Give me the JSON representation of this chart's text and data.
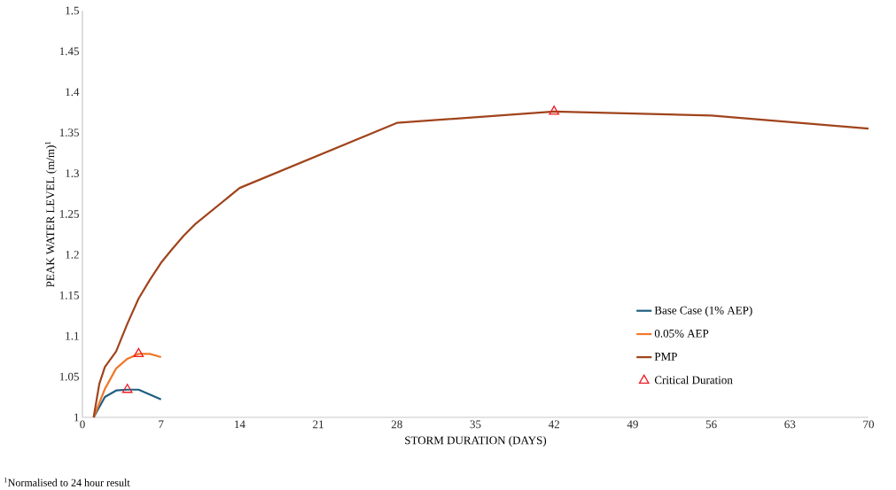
{
  "chart_data": {
    "type": "line",
    "xlabel": "STORM DURATION (DAYS)",
    "ylabel": "PEAK WATER LEVEL (m/m)$^{1}$",
    "annotations": [
      "$^{1}$Normalised to 24 hour result"
    ],
    "xlim": [
      0,
      70
    ],
    "xticks": [
      0,
      7,
      14,
      21,
      28,
      35,
      42,
      49,
      56,
      63,
      70
    ],
    "ylim": [
      1,
      1.5
    ],
    "yticks": [
      1,
      1.05,
      1.1,
      1.15,
      1.2,
      1.25,
      1.3,
      1.35,
      1.4,
      1.45,
      1.5
    ],
    "grid": false,
    "legend": "bottom right",
    "marker": "none",
    "line_style": "solid",
    "series": [
      {
        "name": "Base Case (1% AEP)",
        "color": "#1f5f80",
        "x": [
          1,
          2,
          3,
          4,
          5,
          6,
          7
        ],
        "values": [
          1.0,
          1.025,
          1.033,
          1.034,
          1.034,
          1.028,
          1.022
        ]
      },
      {
        "name": "0.05% AEP",
        "color": "#f07828",
        "x": [
          1,
          2,
          3,
          4,
          5,
          6,
          7
        ],
        "values": [
          1.0,
          1.035,
          1.06,
          1.072,
          1.078,
          1.078,
          1.074
        ]
      },
      {
        "name": "PMP",
        "color": "#a0441c",
        "x": [
          1,
          1.5,
          2,
          3,
          4,
          5,
          6,
          7,
          8,
          9,
          10,
          14,
          28,
          42,
          56,
          70
        ],
        "values": [
          1.0,
          1.041,
          1.062,
          1.081,
          1.115,
          1.146,
          1.169,
          1.19,
          1.207,
          1.223,
          1.237,
          1.282,
          1.362,
          1.376,
          1.371,
          1.355
        ]
      },
      {
        "name": "Critical Duration",
        "type": "scatter",
        "marker": "triangle",
        "color": "#ee1c25",
        "x": [
          4,
          5,
          42
        ],
        "values": [
          1.034,
          1.078,
          1.376
        ]
      }
    ]
  }
}
